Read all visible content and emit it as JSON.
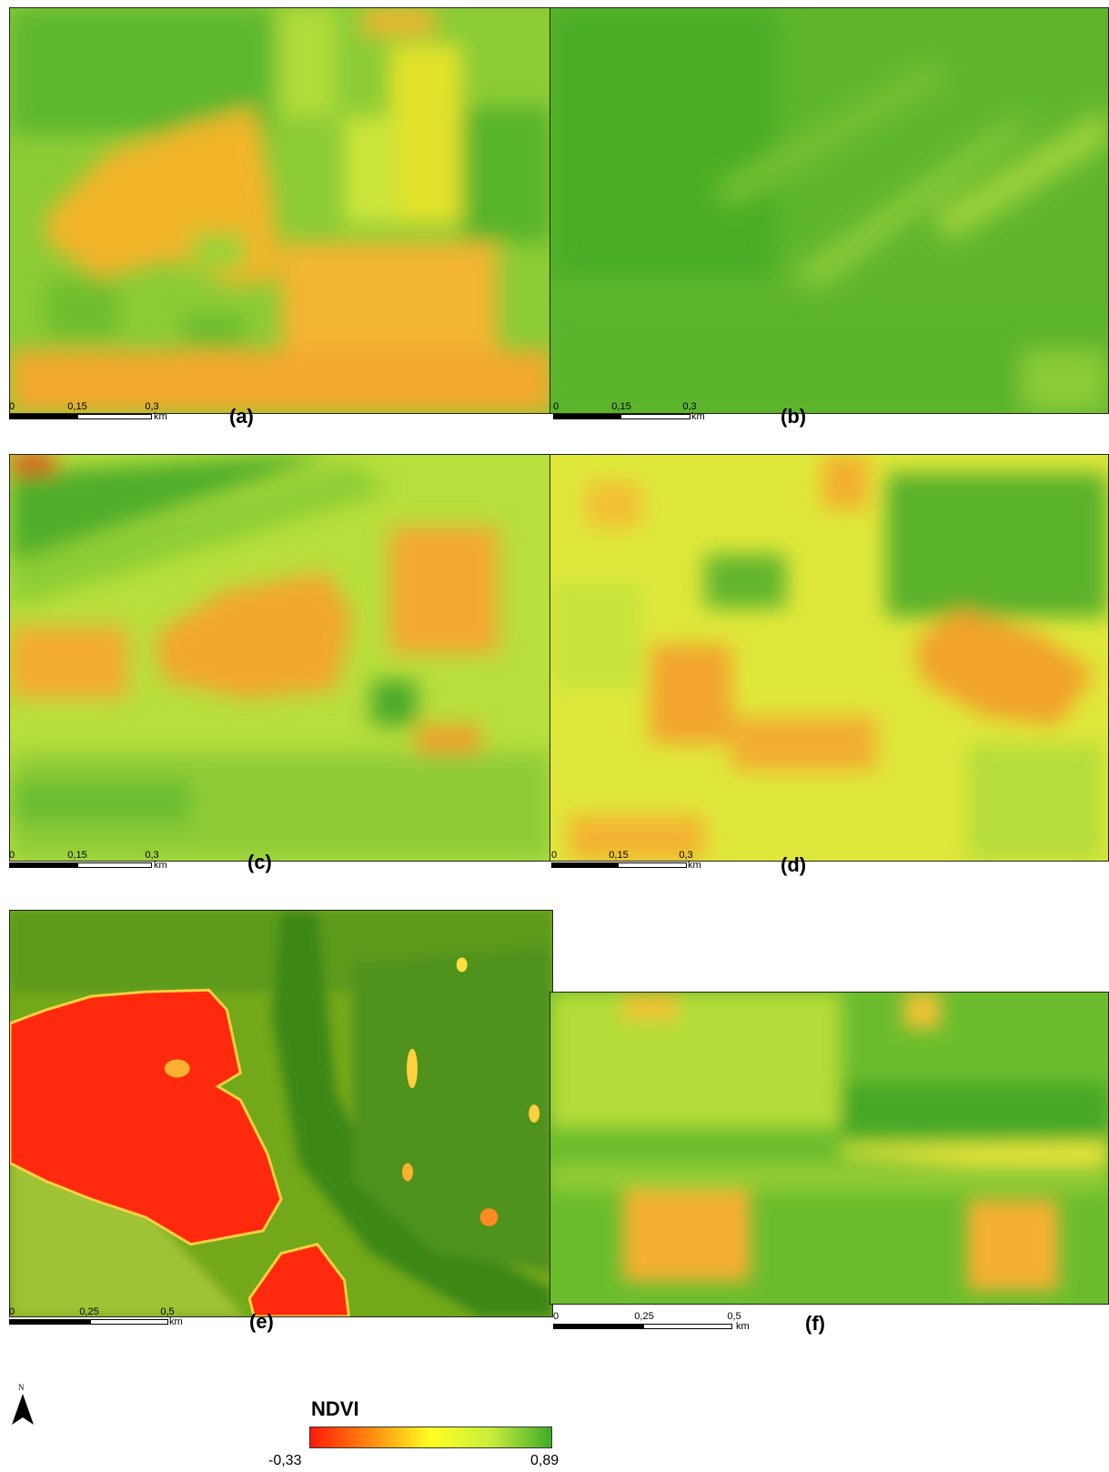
{
  "panels": [
    {
      "label": "(a)",
      "scale": [
        "0",
        "0,15",
        "0,3"
      ],
      "unit": "km"
    },
    {
      "label": "(b)",
      "scale": [
        "0",
        "0,15",
        "0,3"
      ],
      "unit": "km"
    },
    {
      "label": "(c)",
      "scale": [
        "0",
        "0,15",
        "0,3"
      ],
      "unit": "km"
    },
    {
      "label": "(d)",
      "scale": [
        "0",
        "0,15",
        "0,3"
      ],
      "unit": "km"
    },
    {
      "label": "(e)",
      "scale": [
        "0",
        "0,25",
        "0,5"
      ],
      "unit": "km"
    },
    {
      "label": "(f)",
      "scale": [
        "0",
        "0,25",
        "0,5"
      ],
      "unit": "km"
    }
  ],
  "north_arrow": {
    "letter": "N",
    "icon": "north-arrow-icon"
  },
  "legend": {
    "title": "NDVI",
    "min_label": "-0,33",
    "max_label": "0,89",
    "colors": [
      "#ff1a0a",
      "#ff8a10",
      "#ffff22",
      "#c8ee3a",
      "#3fab2a"
    ]
  }
}
